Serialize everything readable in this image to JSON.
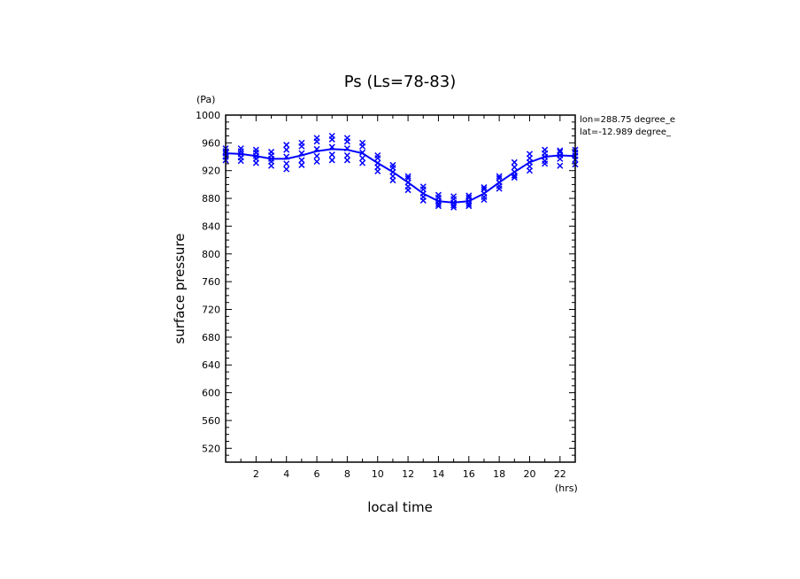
{
  "chart_data": {
    "type": "line",
    "title": "Ps (Ls=78-83)",
    "xlabel": "local time",
    "ylabel": "surface pressure",
    "x_unit": "(hrs)",
    "y_unit": "(Pa)",
    "xlim": [
      0,
      23
    ],
    "ylim": [
      500,
      1000
    ],
    "x_ticks": [
      2,
      4,
      6,
      8,
      10,
      12,
      14,
      16,
      18,
      20,
      22
    ],
    "y_ticks": [
      520,
      560,
      600,
      640,
      680,
      720,
      760,
      800,
      840,
      880,
      920,
      960,
      1000
    ],
    "annotations": [
      "lon=288.75 degree_e",
      "lat=-12.989 degree_"
    ],
    "color": "#0000ff",
    "series": [
      {
        "type": "line",
        "x": [
          0,
          1,
          2,
          3,
          4,
          5,
          6,
          7,
          8,
          9,
          10,
          11,
          12,
          13,
          14,
          15,
          16,
          17,
          18,
          19,
          20,
          21,
          22,
          23
        ],
        "y": [
          945,
          944,
          941,
          937,
          937,
          942,
          948,
          951,
          950,
          945,
          931,
          918,
          903,
          887,
          876,
          874,
          876,
          887,
          903,
          918,
          932,
          940,
          942,
          941
        ]
      },
      {
        "type": "scatter",
        "marker": "x",
        "points": [
          [
            0,
            940
          ],
          [
            0,
            948
          ],
          [
            0,
            935
          ],
          [
            0,
            952
          ],
          [
            0,
            945
          ],
          [
            1,
            939
          ],
          [
            1,
            948
          ],
          [
            1,
            934
          ],
          [
            1,
            952
          ],
          [
            1,
            944
          ],
          [
            2,
            937
          ],
          [
            2,
            946
          ],
          [
            2,
            931
          ],
          [
            2,
            950
          ],
          [
            2,
            941
          ],
          [
            3,
            933
          ],
          [
            3,
            942
          ],
          [
            3,
            927
          ],
          [
            3,
            947
          ],
          [
            3,
            937
          ],
          [
            4,
            930
          ],
          [
            4,
            950
          ],
          [
            4,
            922
          ],
          [
            4,
            957
          ],
          [
            4,
            940
          ],
          [
            5,
            935
          ],
          [
            5,
            955
          ],
          [
            5,
            928
          ],
          [
            5,
            960
          ],
          [
            5,
            945
          ],
          [
            6,
            941
          ],
          [
            6,
            962
          ],
          [
            6,
            933
          ],
          [
            6,
            967
          ],
          [
            6,
            951
          ],
          [
            7,
            943
          ],
          [
            7,
            965
          ],
          [
            7,
            935
          ],
          [
            7,
            970
          ],
          [
            7,
            954
          ],
          [
            8,
            942
          ],
          [
            8,
            962
          ],
          [
            8,
            935
          ],
          [
            8,
            967
          ],
          [
            8,
            952
          ],
          [
            9,
            938
          ],
          [
            9,
            955
          ],
          [
            9,
            931
          ],
          [
            9,
            960
          ],
          [
            9,
            946
          ],
          [
            10,
            925
          ],
          [
            10,
            938
          ],
          [
            10,
            919
          ],
          [
            10,
            942
          ],
          [
            10,
            931
          ],
          [
            11,
            912
          ],
          [
            11,
            924
          ],
          [
            11,
            906
          ],
          [
            11,
            928
          ],
          [
            11,
            918
          ],
          [
            12,
            897
          ],
          [
            12,
            909
          ],
          [
            12,
            892
          ],
          [
            12,
            912
          ],
          [
            12,
            903
          ],
          [
            13,
            882
          ],
          [
            13,
            893
          ],
          [
            13,
            877
          ],
          [
            13,
            897
          ],
          [
            13,
            887
          ],
          [
            14,
            872
          ],
          [
            14,
            881
          ],
          [
            14,
            869
          ],
          [
            14,
            885
          ],
          [
            14,
            876
          ],
          [
            15,
            870
          ],
          [
            15,
            879
          ],
          [
            15,
            867
          ],
          [
            15,
            883
          ],
          [
            15,
            874
          ],
          [
            16,
            872
          ],
          [
            16,
            881
          ],
          [
            16,
            869
          ],
          [
            16,
            884
          ],
          [
            16,
            876
          ],
          [
            17,
            882
          ],
          [
            17,
            893
          ],
          [
            17,
            878
          ],
          [
            17,
            896
          ],
          [
            17,
            887
          ],
          [
            18,
            898
          ],
          [
            18,
            909
          ],
          [
            18,
            894
          ],
          [
            18,
            912
          ],
          [
            18,
            903
          ],
          [
            19,
            913
          ],
          [
            19,
            925
          ],
          [
            19,
            910
          ],
          [
            19,
            932
          ],
          [
            19,
            918
          ],
          [
            20,
            926
          ],
          [
            20,
            938
          ],
          [
            20,
            920
          ],
          [
            20,
            944
          ],
          [
            20,
            932
          ],
          [
            21,
            934
          ],
          [
            21,
            945
          ],
          [
            21,
            930
          ],
          [
            21,
            950
          ],
          [
            21,
            940
          ],
          [
            22,
            937
          ],
          [
            22,
            947
          ],
          [
            22,
            927
          ],
          [
            22,
            949
          ],
          [
            22,
            942
          ],
          [
            23,
            936
          ],
          [
            23,
            946
          ],
          [
            23,
            929
          ],
          [
            23,
            950
          ],
          [
            23,
            941
          ]
        ]
      }
    ]
  }
}
